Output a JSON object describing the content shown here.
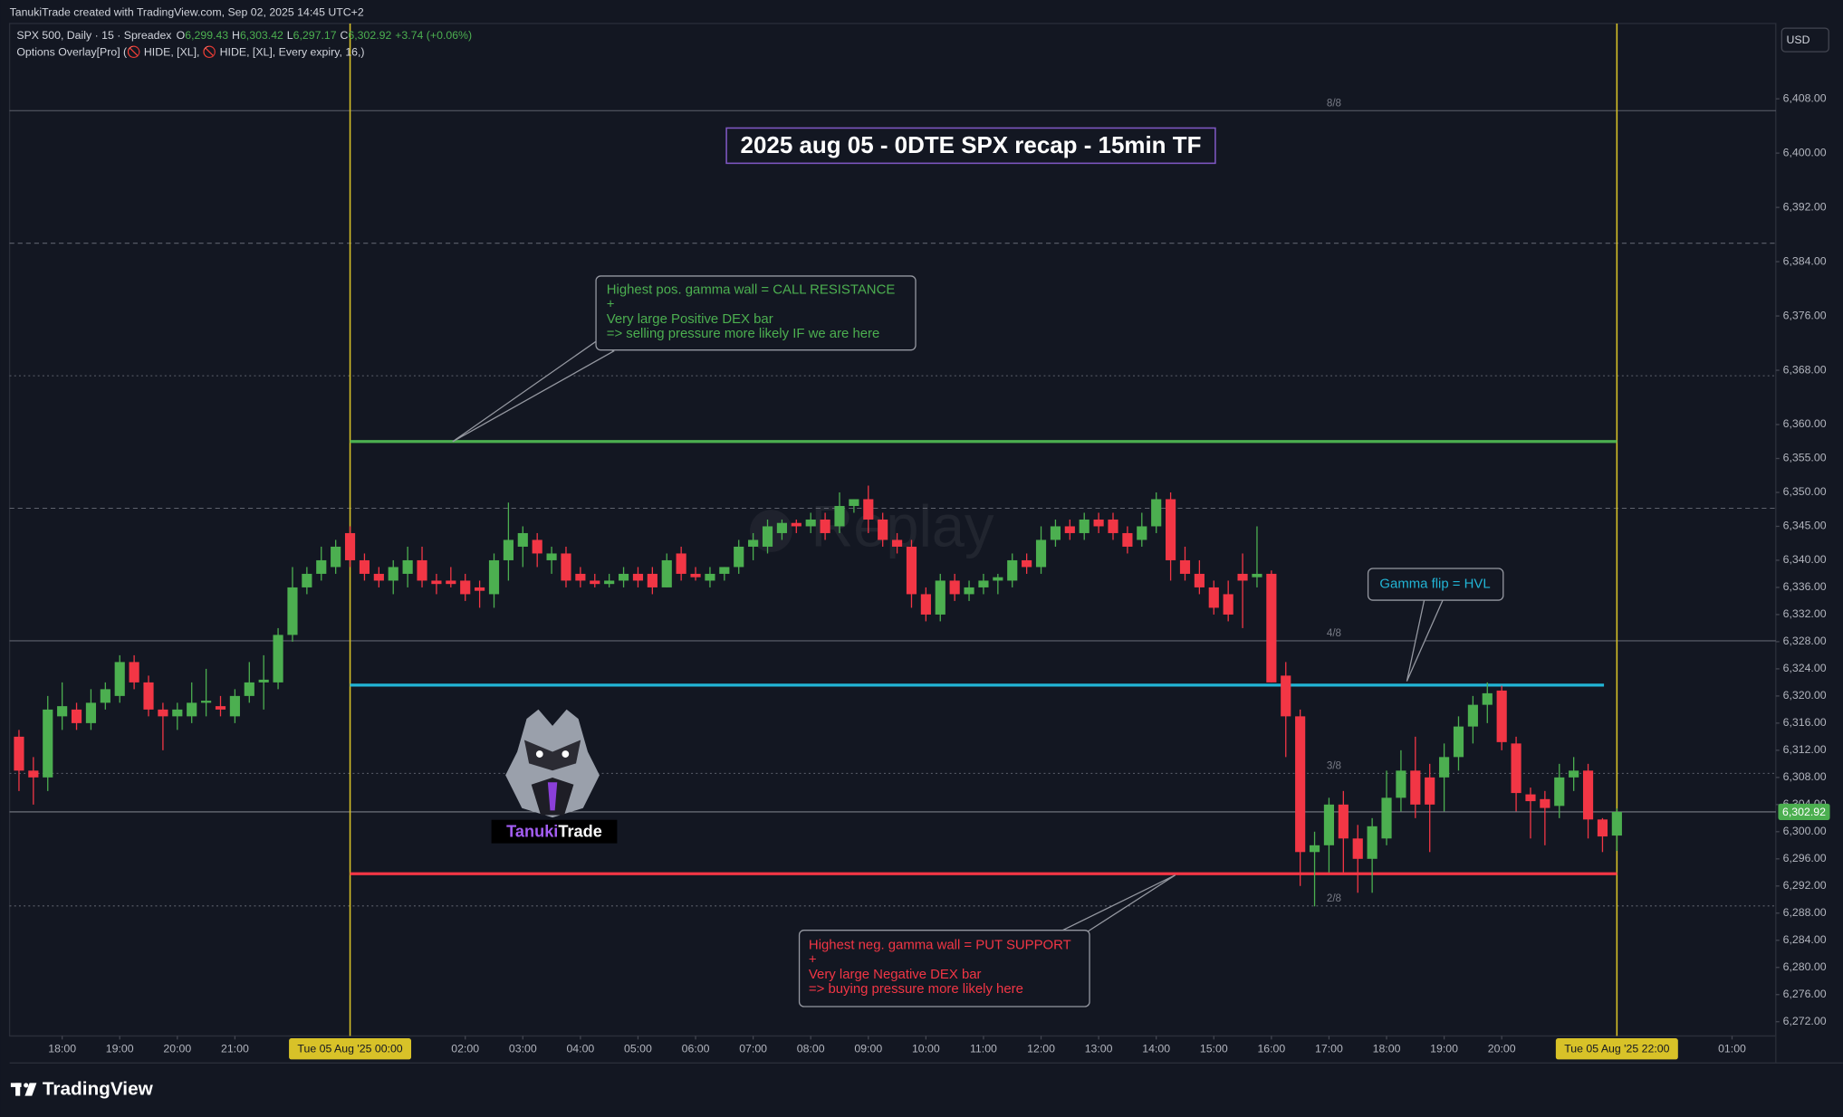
{
  "header": "TanukiTrade created with TradingView.com, Sep 02, 2025 14:45 UTC+2",
  "footer": "TradingView",
  "chart_data": {
    "type": "candlestick",
    "title": "2025 aug 05 - 0DTE SPX recap - 15min TF",
    "legend": {
      "symbol": "SPX 500, Daily · 15 · Spreadex",
      "ohlc": [
        {
          "key": "O",
          "value": "6,299.43"
        },
        {
          "key": "H",
          "value": "6,303.42"
        },
        {
          "key": "L",
          "value": "6,297.17"
        },
        {
          "key": "C",
          "value": "6,302.92"
        }
      ],
      "change": "+3.74 (+0.06%)",
      "indicator": "Options Overlay[Pro] (🚫 HIDE, [XL], 🚫 HIDE, [XL], Every expiry, 16,)"
    },
    "currency": "USD",
    "watermark": "Replay",
    "logo": {
      "first": "Tanuki",
      "second": "Trade"
    },
    "up_color": "#4caf50",
    "down_color": "#f23645",
    "categories": [
      "17:15",
      "17:30",
      "17:45",
      "18:00",
      "18:15",
      "18:30",
      "18:45",
      "19:00",
      "19:15",
      "19:30",
      "19:45",
      "20:00",
      "20:15",
      "20:30",
      "20:45",
      "21:00",
      "21:15",
      "21:30",
      "21:45",
      "22:00",
      "22:15",
      "22:30",
      "22:45",
      "00:00",
      "00:15",
      "00:30",
      "00:45",
      "01:00",
      "01:15",
      "01:30",
      "01:45",
      "02:00",
      "02:15",
      "02:30",
      "02:45",
      "03:00",
      "03:15",
      "03:30",
      "03:45",
      "04:00",
      "04:15",
      "04:30",
      "04:45",
      "05:00",
      "05:15",
      "05:30",
      "05:45",
      "06:00",
      "06:15",
      "06:30",
      "06:45",
      "07:00",
      "07:15",
      "07:30",
      "07:45",
      "08:00",
      "08:15",
      "08:30",
      "08:45",
      "09:00",
      "09:15",
      "09:30",
      "09:45",
      "10:00",
      "10:15",
      "10:30",
      "10:45",
      "11:00",
      "11:15",
      "11:30",
      "11:45",
      "12:00",
      "12:15",
      "12:30",
      "12:45",
      "13:00",
      "13:15",
      "13:30",
      "13:45",
      "14:00",
      "14:15",
      "14:30",
      "14:45",
      "15:00",
      "15:15",
      "15:30",
      "15:45",
      "16:00",
      "16:15",
      "16:30",
      "16:45",
      "17:00",
      "17:15",
      "17:30",
      "17:45",
      "18:00",
      "18:15",
      "18:30",
      "18:45",
      "19:00",
      "19:15",
      "19:30",
      "19:45",
      "20:00",
      "20:15",
      "20:30",
      "20:45",
      "21:00",
      "21:15",
      "21:30",
      "21:45",
      "22:00"
    ],
    "open": [
      6314,
      6309,
      6308,
      6317,
      6318,
      6316,
      6319,
      6320,
      6325,
      6322,
      6318,
      6317,
      6317,
      6319,
      6318.5,
      6317,
      6320,
      6322,
      6322,
      6329,
      6336,
      6338,
      6339,
      6344,
      6340,
      6338,
      6337,
      6338,
      6340,
      6337,
      6337,
      6337,
      6336,
      6335,
      6340,
      6342,
      6343,
      6340,
      6341,
      6338,
      6337,
      6336.5,
      6337,
      6338,
      6338,
      6336,
      6341,
      6338,
      6337,
      6338,
      6339,
      6342,
      6342,
      6344,
      6345.5,
      6345,
      6346,
      6345,
      6348,
      6349,
      6346,
      6343,
      6342,
      6335,
      6332,
      6337,
      6335,
      6336,
      6337,
      6337,
      6340,
      6339,
      6343,
      6345,
      6344,
      6346,
      6346,
      6344,
      6343,
      6345,
      6349,
      6340,
      6338,
      6336,
      6335,
      6338,
      6337.5,
      6338,
      6323,
      6317,
      6297,
      6298,
      6304,
      6299,
      6296,
      6299,
      6305,
      6309,
      6308,
      6308,
      6311,
      6315.5,
      6318.7,
      6320.8,
      6313,
      6305.5,
      6304.8,
      6303.8,
      6308,
      6309,
      6301.8,
      6299.43
    ],
    "high": [
      6315,
      6311,
      6320,
      6322,
      6319,
      6321,
      6322,
      6326,
      6326,
      6323,
      6319,
      6319,
      6322,
      6324,
      6320,
      6321,
      6325,
      6326,
      6330,
      6339,
      6339,
      6342,
      6343,
      6345,
      6341,
      6339,
      6340,
      6342,
      6342,
      6338,
      6339,
      6338,
      6337,
      6341,
      6348.5,
      6345,
      6344,
      6342,
      6342,
      6339,
      6338,
      6338,
      6339,
      6339,
      6339,
      6341,
      6342,
      6339,
      6339,
      6339,
      6343,
      6344,
      6346,
      6346,
      6346,
      6347,
      6347,
      6350,
      6349,
      6351,
      6347,
      6344,
      6343,
      6336,
      6338,
      6338,
      6337,
      6338,
      6338,
      6341,
      6341,
      6345,
      6346,
      6346,
      6347,
      6347,
      6347,
      6345,
      6347,
      6350,
      6350,
      6342,
      6340,
      6337,
      6337,
      6341,
      6345,
      6338.5,
      6325,
      6318,
      6300,
      6305,
      6306,
      6301,
      6302,
      6309,
      6312,
      6314,
      6310,
      6313,
      6317,
      6320,
      6322,
      6321.5,
      6314,
      6306.5,
      6306,
      6310,
      6311,
      6310,
      6302,
      6303.42
    ],
    "low": [
      6306,
      6304,
      6306,
      6315,
      6315,
      6315,
      6318,
      6319,
      6321,
      6317,
      6312,
      6315,
      6316,
      6317,
      6317,
      6316,
      6319,
      6318,
      6321,
      6328,
      6335,
      6337,
      6338,
      6339,
      6337,
      6336,
      6335,
      6336,
      6336,
      6335,
      6336,
      6334,
      6333,
      6333,
      6337,
      6339,
      6339,
      6338,
      6336,
      6336,
      6336,
      6336,
      6336,
      6336,
      6335,
      6336,
      6337,
      6337,
      6336,
      6337,
      6338,
      6340,
      6341,
      6343,
      6344,
      6344,
      6343,
      6344,
      6347,
      6344,
      6342,
      6341,
      6333,
      6331,
      6331,
      6334,
      6334,
      6335,
      6335,
      6336,
      6338,
      6338,
      6342,
      6343,
      6343,
      6344,
      6343,
      6341,
      6342,
      6344,
      6337,
      6337,
      6335,
      6332,
      6331,
      6330,
      6336,
      6322,
      6311,
      6292,
      6289,
      6294,
      6294,
      6291,
      6291,
      6298,
      6303,
      6302,
      6297,
      6303,
      6309,
      6313,
      6316,
      6312,
      6303,
      6299,
      6298,
      6302,
      6306,
      6299,
      6297,
      6297.17
    ],
    "close": [
      6309,
      6308,
      6318,
      6318.5,
      6316,
      6319,
      6321,
      6325,
      6322,
      6318,
      6317,
      6318,
      6319,
      6319.3,
      6318,
      6320,
      6322,
      6322.4,
      6329,
      6336,
      6338,
      6340,
      6342,
      6340,
      6338,
      6337,
      6339,
      6340,
      6337,
      6336.5,
      6336.5,
      6335,
      6335.5,
      6340,
      6343,
      6344,
      6341,
      6341,
      6337,
      6337,
      6336.5,
      6337,
      6338,
      6337,
      6336,
      6340,
      6338,
      6337.5,
      6338,
      6339,
      6342,
      6343,
      6345,
      6345.5,
      6345,
      6346,
      6344,
      6348,
      6349,
      6346,
      6343,
      6342,
      6335,
      6332,
      6337,
      6335,
      6336,
      6337,
      6337.5,
      6340,
      6339,
      6343,
      6345,
      6344,
      6346,
      6345,
      6344,
      6342,
      6345,
      6349,
      6340,
      6338,
      6336,
      6333,
      6332,
      6337,
      6338,
      6322,
      6317,
      6297,
      6298,
      6304,
      6299,
      6296,
      6300.8,
      6305,
      6309,
      6304,
      6304,
      6311,
      6315.5,
      6318.7,
      6320.4,
      6313.2,
      6305.7,
      6304.5,
      6303.5,
      6308,
      6309,
      6301.8,
      6299.3,
      6302.92
    ],
    "ylim": [
      6269.9,
      6419.1
    ],
    "yticks": [
      {
        "value": 6408,
        "label": "6,408.00"
      },
      {
        "value": 6400,
        "label": "6,400.00"
      },
      {
        "value": 6392,
        "label": "6,392.00"
      },
      {
        "value": 6384,
        "label": "6,384.00"
      },
      {
        "value": 6376,
        "label": "6,376.00"
      },
      {
        "value": 6368,
        "label": "6,368.00"
      },
      {
        "value": 6360,
        "label": "6,360.00"
      },
      {
        "value": 6355,
        "label": "6,355.00"
      },
      {
        "value": 6350,
        "label": "6,350.00"
      },
      {
        "value": 6345,
        "label": "6,345.00"
      },
      {
        "value": 6340,
        "label": "6,340.00"
      },
      {
        "value": 6336,
        "label": "6,336.00"
      },
      {
        "value": 6332,
        "label": "6,332.00"
      },
      {
        "value": 6328,
        "label": "6,328.00"
      },
      {
        "value": 6324,
        "label": "6,324.00"
      },
      {
        "value": 6320,
        "label": "6,320.00"
      },
      {
        "value": 6316,
        "label": "6,316.00"
      },
      {
        "value": 6312,
        "label": "6,312.00"
      },
      {
        "value": 6308,
        "label": "6,308.00"
      },
      {
        "value": 6304,
        "label": "6,304.00"
      },
      {
        "value": 6300,
        "label": "6,300.00"
      },
      {
        "value": 6296,
        "label": "6,296.00"
      },
      {
        "value": 6292,
        "label": "6,292.00"
      },
      {
        "value": 6288,
        "label": "6,288.00"
      },
      {
        "value": 6284,
        "label": "6,284.00"
      },
      {
        "value": 6280,
        "label": "6,280.00"
      },
      {
        "value": 6276,
        "label": "6,276.00"
      },
      {
        "value": 6272,
        "label": "6,272.00"
      }
    ],
    "xticks": [
      {
        "value": 3,
        "label": "18:00"
      },
      {
        "value": 7,
        "label": "19:00"
      },
      {
        "value": 11,
        "label": "20:00"
      },
      {
        "value": 15,
        "label": "21:00"
      },
      {
        "value": 31,
        "label": "02:00"
      },
      {
        "value": 35,
        "label": "03:00"
      },
      {
        "value": 39,
        "label": "04:00"
      },
      {
        "value": 43,
        "label": "05:00"
      },
      {
        "value": 47,
        "label": "06:00"
      },
      {
        "value": 51,
        "label": "07:00"
      },
      {
        "value": 55,
        "label": "08:00"
      },
      {
        "value": 59,
        "label": "09:00"
      },
      {
        "value": 63,
        "label": "10:00"
      },
      {
        "value": 67,
        "label": "11:00"
      },
      {
        "value": 71,
        "label": "12:00"
      },
      {
        "value": 75,
        "label": "13:00"
      },
      {
        "value": 79,
        "label": "14:00"
      },
      {
        "value": 83,
        "label": "15:00"
      },
      {
        "value": 87,
        "label": "16:00"
      },
      {
        "value": 91,
        "label": "17:00"
      },
      {
        "value": 95,
        "label": "18:00"
      },
      {
        "value": 99,
        "label": "19:00"
      },
      {
        "value": 103,
        "label": "20:00"
      },
      {
        "value": 119,
        "label": "01:00"
      }
    ],
    "session_markers": [
      {
        "value": 23,
        "label": "Tue 05 Aug '25  00:00"
      },
      {
        "value": 111,
        "label": "Tue 05 Aug '25  22:00"
      }
    ],
    "marker_color": "#d8c228",
    "last_price": {
      "value": 6302.92,
      "label": "6,302.92"
    },
    "murray_levels": [
      {
        "value": 6406.25,
        "label": "8/8",
        "style": "solid"
      },
      {
        "value": 6386.72,
        "style": "dashed"
      },
      {
        "value": 6367.19,
        "style": "dotted"
      },
      {
        "value": 6347.66,
        "style": "dashed"
      },
      {
        "value": 6328.13,
        "label": "4/8",
        "style": "solid"
      },
      {
        "value": 6308.59,
        "label": "3/8",
        "style": "dotted"
      },
      {
        "value": 6289.06,
        "label": "2/8",
        "style": "dotted"
      }
    ],
    "levels": {
      "call_resistance": {
        "value": 6357.5,
        "color": "#4caf50",
        "text": [
          "Highest pos. gamma wall = CALL RESISTANCE",
          "+",
          "Very large Positive DEX bar",
          "=> selling pressure more likely IF we are here"
        ]
      },
      "hvl": {
        "value": 6321.6,
        "color": "#22b5d6",
        "text": [
          "Gamma flip = HVL"
        ]
      },
      "put_support": {
        "value": 6293.8,
        "color": "#f23645",
        "text": [
          "Highest neg. gamma wall = PUT SUPPORT",
          "+",
          "Very large Negative DEX bar",
          "=> buying  pressure more likely here"
        ]
      }
    }
  }
}
